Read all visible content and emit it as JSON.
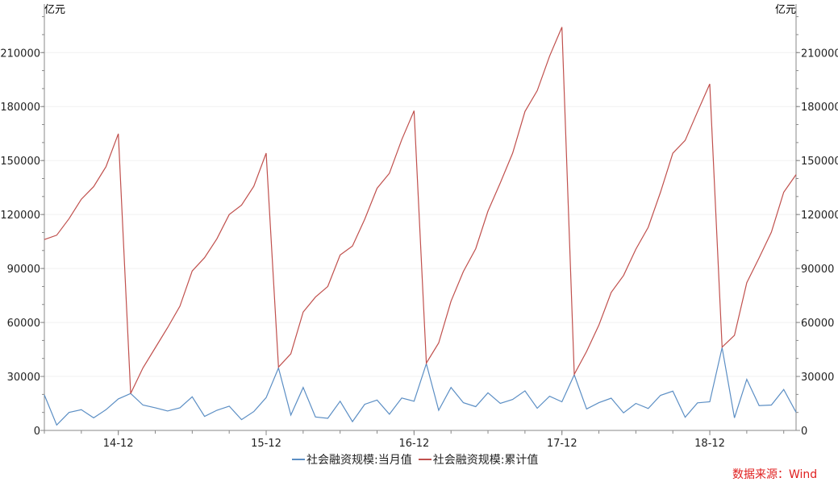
{
  "chart_data": {
    "type": "line",
    "title": "",
    "ylabel_left": "亿元",
    "ylabel_right": "亿元",
    "ylim": [
      0,
      237000
    ],
    "yticks": [
      0,
      30000,
      60000,
      90000,
      120000,
      150000,
      180000,
      210000
    ],
    "ytick_labels": [
      "0",
      "30000",
      "60000",
      "90000",
      "120000",
      "150000",
      "180000",
      "210000"
    ],
    "xtick_labels": [
      "14-12",
      "15-12",
      "16-12",
      "17-12",
      "18-12"
    ],
    "xtick_months": [
      "2014-12",
      "2015-12",
      "2016-12",
      "2017-12",
      "2018-12"
    ],
    "grid": true,
    "legend_position": "bottom",
    "x": [
      "2014-06",
      "2014-07",
      "2014-08",
      "2014-09",
      "2014-10",
      "2014-11",
      "2014-12",
      "2015-01",
      "2015-02",
      "2015-03",
      "2015-04",
      "2015-05",
      "2015-06",
      "2015-07",
      "2015-08",
      "2015-09",
      "2015-10",
      "2015-11",
      "2015-12",
      "2016-01",
      "2016-02",
      "2016-03",
      "2016-04",
      "2016-05",
      "2016-06",
      "2016-07",
      "2016-08",
      "2016-09",
      "2016-10",
      "2016-11",
      "2016-12",
      "2017-01",
      "2017-02",
      "2017-03",
      "2017-04",
      "2017-05",
      "2017-06",
      "2017-07",
      "2017-08",
      "2017-09",
      "2017-10",
      "2017-11",
      "2017-12",
      "2018-01",
      "2018-02",
      "2018-03",
      "2018-04",
      "2018-05",
      "2018-06",
      "2018-07",
      "2018-08",
      "2018-09",
      "2018-10",
      "2018-11",
      "2018-12",
      "2019-01",
      "2019-02",
      "2019-03",
      "2019-04",
      "2019-05",
      "2019-06",
      "2019-07"
    ],
    "series": [
      {
        "name": "社会融资规模:当月值",
        "color": "#5b8ec4",
        "values": [
          19700,
          3000,
          10000,
          11500,
          7000,
          11500,
          17500,
          20500,
          14100,
          12600,
          10800,
          12600,
          18700,
          7800,
          11200,
          13500,
          6000,
          10500,
          18250,
          34700,
          8500,
          23900,
          7500,
          6700,
          16200,
          4900,
          14500,
          16900,
          9000,
          18000,
          16200,
          37100,
          11200,
          23900,
          15400,
          13200,
          20900,
          15000,
          17200,
          22000,
          12300,
          19000,
          15900,
          30900,
          11900,
          15400,
          17900,
          9750,
          15000,
          12200,
          19500,
          21800,
          7300,
          15300,
          15900,
          46000,
          7000,
          28400,
          13800,
          14100,
          22750,
          10100
        ]
      },
      {
        "name": "社会融资规模:累计值",
        "color": "#c0504d",
        "values": [
          106100,
          108500,
          117700,
          128500,
          135500,
          146600,
          164900,
          20500,
          34700,
          45900,
          57100,
          69100,
          88600,
          96000,
          106500,
          120000,
          125200,
          135700,
          154100,
          35200,
          42600,
          65800,
          74100,
          80000,
          97500,
          102500,
          117400,
          134600,
          142900,
          161600,
          177700,
          37400,
          48600,
          71800,
          88300,
          101000,
          121900,
          137600,
          154100,
          177300,
          188900,
          208000,
          224200,
          31200,
          43900,
          58500,
          76700,
          86100,
          100750,
          112900,
          132400,
          154050,
          161200,
          177100,
          192600,
          46300,
          52800,
          82100,
          95900,
          110200,
          132400,
          142200
        ]
      }
    ]
  },
  "source_note": "数据来源：Wind"
}
